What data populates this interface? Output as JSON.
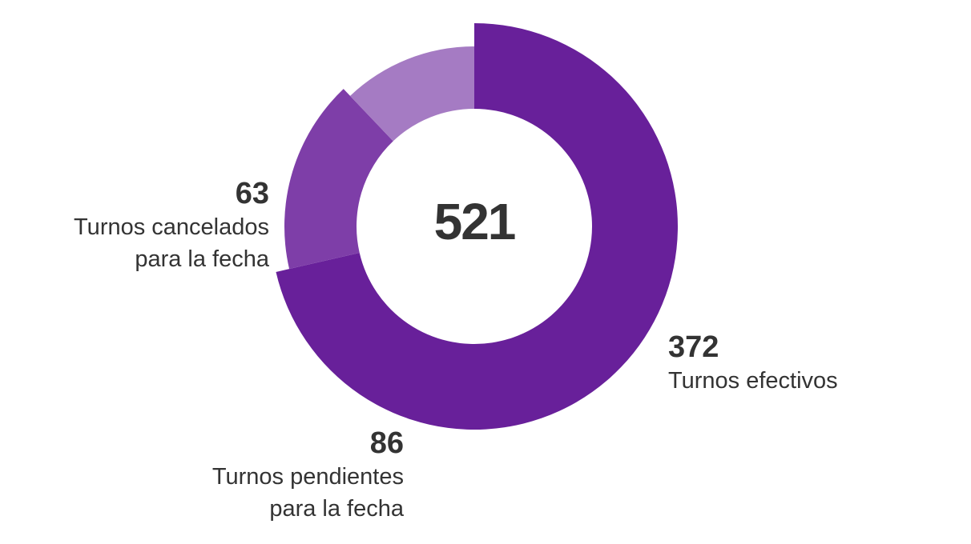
{
  "chart_data": {
    "type": "pie",
    "donut": true,
    "total": "521",
    "slices": [
      {
        "label": "Turnos efectivos",
        "value": 372,
        "color": "#68209a"
      },
      {
        "label": "Turnos pendientes\npara la fecha",
        "value": 86,
        "color": "#7e3ea8"
      },
      {
        "label": "Turnos cancelados\npara la fecha",
        "value": 63,
        "color": "#a57bc3"
      }
    ]
  }
}
